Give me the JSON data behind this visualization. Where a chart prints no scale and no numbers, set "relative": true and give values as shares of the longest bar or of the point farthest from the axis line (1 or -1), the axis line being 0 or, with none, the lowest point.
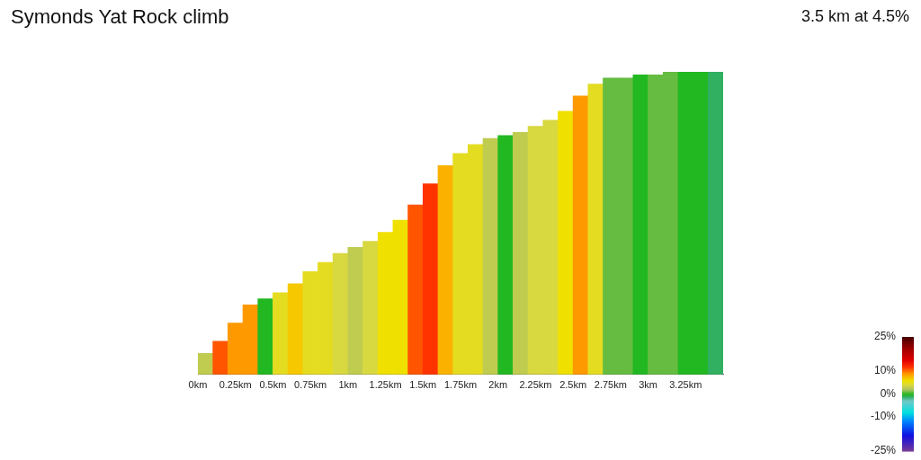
{
  "chart_data": {
    "type": "bar",
    "title": "Symonds Yat Rock climb",
    "subtitle": "3.5 km at 4.5%",
    "relative": true,
    "x": [
      0.05,
      0.15,
      0.25,
      0.35,
      0.45,
      0.55,
      0.65,
      0.75,
      0.85,
      0.95,
      1.05,
      1.15,
      1.25,
      1.35,
      1.45,
      1.55,
      1.65,
      1.75,
      1.85,
      1.95,
      2.05,
      2.15,
      2.25,
      2.35,
      2.45,
      2.55,
      2.65,
      2.75,
      2.85,
      2.95,
      3.05,
      3.15,
      3.25,
      3.35,
      3.45
    ],
    "values": [
      0.07,
      0.11,
      0.17,
      0.23,
      0.25,
      0.27,
      0.3,
      0.34,
      0.37,
      0.4,
      0.42,
      0.44,
      0.47,
      0.51,
      0.56,
      0.63,
      0.69,
      0.73,
      0.76,
      0.78,
      0.79,
      0.8,
      0.82,
      0.84,
      0.87,
      0.92,
      0.96,
      0.98,
      0.98,
      0.99,
      0.99,
      1,
      1,
      1,
      1
    ],
    "cvalues": [
      3,
      11,
      9,
      9,
      0,
      5,
      7,
      5,
      5,
      4,
      3,
      4,
      6,
      6,
      11,
      12,
      8,
      5,
      5,
      3,
      0,
      3,
      4,
      4,
      6,
      9,
      5,
      1,
      1,
      0,
      1,
      1,
      0,
      0,
      -1
    ],
    "xlim": [
      0,
      3.5
    ],
    "xticks": [
      {
        "value": 0,
        "label": "0km"
      },
      {
        "value": 0.25,
        "label": "0.25km"
      },
      {
        "value": 0.5,
        "label": "0.5km"
      },
      {
        "value": 0.75,
        "label": "0.75km"
      },
      {
        "value": 1,
        "label": "1km"
      },
      {
        "value": 1.25,
        "label": "1.25km"
      },
      {
        "value": 1.5,
        "label": "1.5km"
      },
      {
        "value": 1.75,
        "label": "1.75km"
      },
      {
        "value": 2,
        "label": "2km"
      },
      {
        "value": 2.25,
        "label": "2.25km"
      },
      {
        "value": 2.5,
        "label": "2.5km"
      },
      {
        "value": 2.75,
        "label": "2.75km"
      },
      {
        "value": 3,
        "label": "3km"
      },
      {
        "value": 3.25,
        "label": "3.25km"
      }
    ],
    "clim": [
      -25,
      25
    ],
    "cticks": [
      {
        "value": 25,
        "label": "25%"
      },
      {
        "value": 10,
        "label": "10%"
      },
      {
        "value": 0,
        "label": "0%"
      },
      {
        "value": -10,
        "label": "-10%"
      },
      {
        "value": -25,
        "label": "-25%"
      }
    ]
  }
}
